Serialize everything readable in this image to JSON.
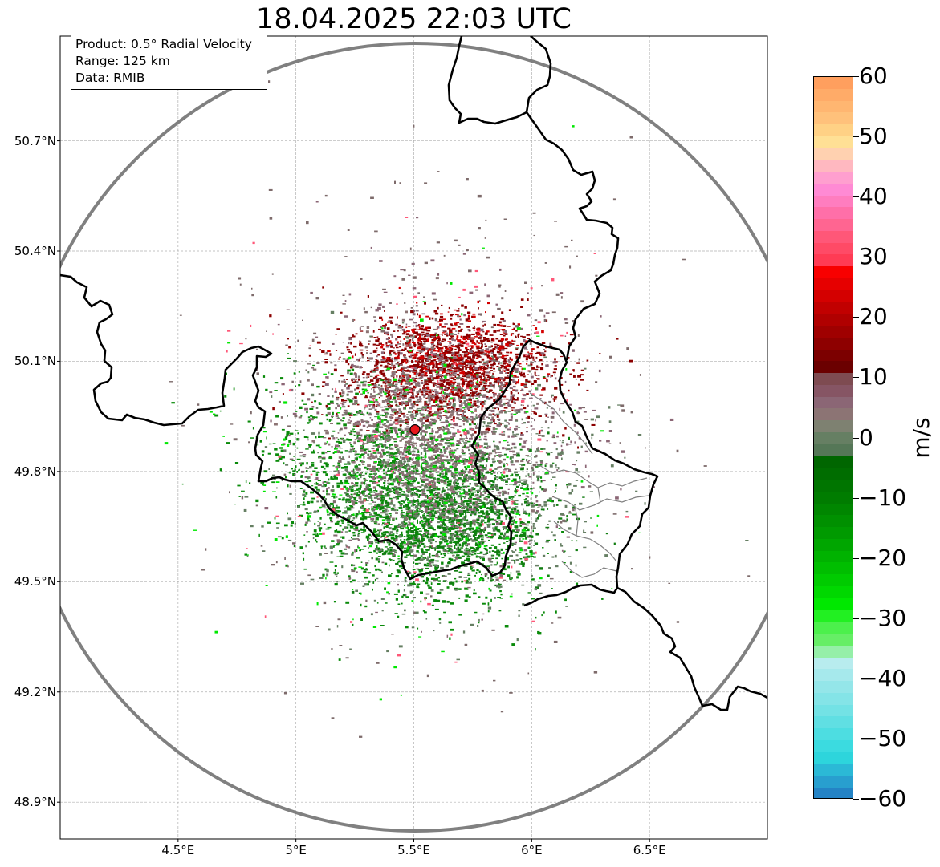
{
  "title": "18.04.2025 22:03 UTC",
  "info": {
    "product": "Product: 0.5° Radial Velocity",
    "range": "Range: 125 km",
    "data": "Data: RMIB"
  },
  "map": {
    "lon_range": [
      4.0,
      7.0
    ],
    "lat_range": [
      48.8,
      50.985
    ],
    "lat_ticks": [
      "50.7°N",
      "50.4°N",
      "50.1°N",
      "49.8°N",
      "49.5°N",
      "49.2°N",
      "48.9°N"
    ],
    "lat_values": [
      50.7,
      50.4,
      50.1,
      49.8,
      49.5,
      49.2,
      48.9
    ],
    "lon_ticks": [
      "4.5°E",
      "5°E",
      "5.5°E",
      "6°E",
      "6.5°E"
    ],
    "lon_values": [
      4.5,
      5.0,
      5.5,
      6.0,
      6.5
    ],
    "radar_site": {
      "lon": 5.505,
      "lat": 49.914,
      "color": "#e8171c"
    },
    "range_ring_color": "#808080",
    "border_color": "#000000",
    "grid": true
  },
  "colorbar": {
    "unit": "m/s",
    "vmin": -60,
    "vmax": 60,
    "ticks": [
      "60",
      "50",
      "40",
      "30",
      "20",
      "10",
      "0",
      "−10",
      "−20",
      "−30",
      "−40",
      "−50",
      "−60"
    ],
    "tick_values": [
      60,
      50,
      40,
      30,
      20,
      10,
      0,
      -10,
      -20,
      -30,
      -40,
      -50,
      -60
    ],
    "colors": [
      "#ff9f5e",
      "#ffab68",
      "#ffb671",
      "#ffc17b",
      "#ffd185",
      "#ffe095",
      "#ffd1b0",
      "#ffb8c0",
      "#ff9fcf",
      "#ff8ad4",
      "#ff7dbf",
      "#ff6fa8",
      "#ff6591",
      "#ff5778",
      "#ff4a66",
      "#ff3b54",
      "#f80000",
      "#e60000",
      "#d40000",
      "#c10000",
      "#b00000",
      "#9f0000",
      "#8e0000",
      "#7c0000",
      "#6b0000",
      "#7e4b51",
      "#865564",
      "#8b6675",
      "#8c7474",
      "#7e8171",
      "#667f63",
      "#557757",
      "#006600",
      "#006d00",
      "#007500",
      "#007c00",
      "#008600",
      "#009000",
      "#009a00",
      "#00a600",
      "#00b200",
      "#00be00",
      "#00cb00",
      "#00d800",
      "#00e800",
      "#22f022",
      "#4cf04c",
      "#66ee66",
      "#95efa8",
      "#b8ecee",
      "#a6e9ec",
      "#94e6e9",
      "#84e4e7",
      "#73e2e5",
      "#60dfe3",
      "#4ddde1",
      "#3bdbe0",
      "#2dd5dc",
      "#2bb9d6",
      "#289fcf",
      "#2483c5"
    ]
  },
  "regions": [
    {
      "name": "southwest-green",
      "color": "#0a8a0a",
      "cx": 5.45,
      "cy": 49.72,
      "sx": 0.27,
      "sy": 0.12,
      "rot": -0.25,
      "n": 1900
    },
    {
      "name": "east-green",
      "color": "#117d11",
      "cx": 5.7,
      "cy": 49.68,
      "sx": 0.2,
      "sy": 0.08,
      "rot": 0.1,
      "n": 800
    },
    {
      "name": "north-red",
      "color": "#8b0000",
      "cx": 5.63,
      "cy": 50.08,
      "sx": 0.22,
      "sy": 0.07,
      "rot": 0.0,
      "n": 1500
    },
    {
      "name": "red-bright",
      "color": "#d40000",
      "cx": 5.66,
      "cy": 50.12,
      "sx": 0.18,
      "sy": 0.06,
      "rot": 0.0,
      "n": 300
    },
    {
      "name": "mauve",
      "color": "#8b6675",
      "cx": 5.62,
      "cy": 49.93,
      "sx": 0.27,
      "sy": 0.17,
      "rot": 0.0,
      "n": 1000
    },
    {
      "name": "gray-green",
      "color": "#667f63",
      "cx": 5.62,
      "cy": 49.76,
      "sx": 0.3,
      "sy": 0.16,
      "rot": 0.0,
      "n": 1100
    },
    {
      "name": "center-gray",
      "color": "#8c7474",
      "cx": 5.52,
      "cy": 49.9,
      "sx": 0.2,
      "sy": 0.12,
      "rot": 0.0,
      "n": 700
    },
    {
      "name": "scatter-bright",
      "color": "#00e800",
      "cx": 5.5,
      "cy": 49.8,
      "sx": 0.35,
      "sy": 0.22,
      "rot": 0.0,
      "n": 220
    },
    {
      "name": "scatter-pink",
      "color": "#ff5778",
      "cx": 5.55,
      "cy": 49.85,
      "sx": 0.35,
      "sy": 0.25,
      "rot": 0.0,
      "n": 120
    },
    {
      "name": "outer-sparse",
      "color": "#7e6b6b",
      "cx": 5.55,
      "cy": 49.95,
      "sx": 0.45,
      "sy": 0.32,
      "rot": 0.0,
      "n": 400
    }
  ]
}
